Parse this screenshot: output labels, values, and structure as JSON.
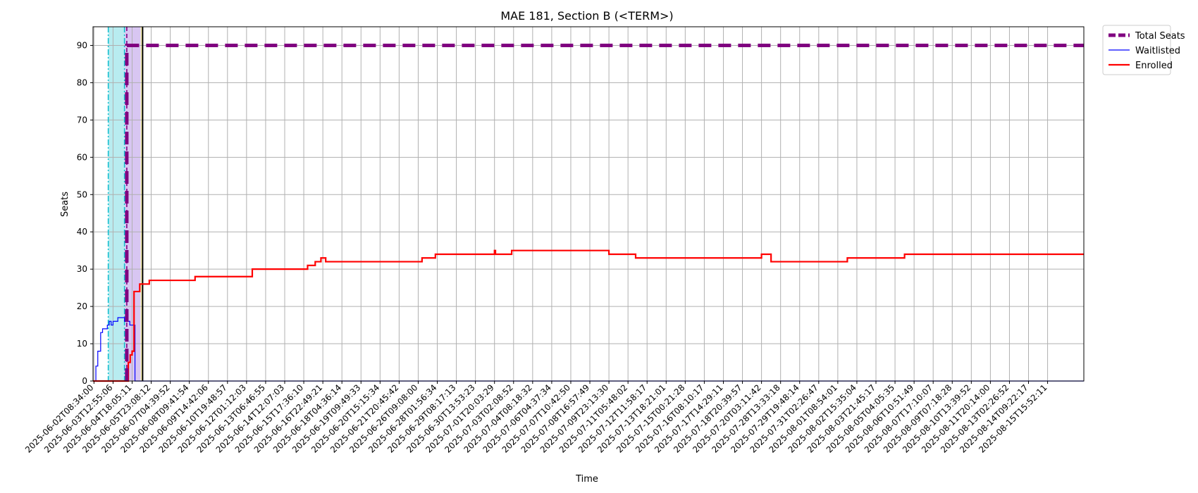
{
  "chart_data": {
    "type": "line",
    "title": "MAE 181, Section B (<TERM>)",
    "xlabel": "Time",
    "ylabel": "Seats",
    "ylim": [
      0,
      95
    ],
    "yticks": [
      0,
      10,
      20,
      30,
      40,
      50,
      60,
      70,
      80,
      90
    ],
    "grid": true,
    "legend_position": "outside-top-right",
    "x_tick_labels": [
      "2025-06-02T08:34:00",
      "2025-06-03T12:55:06",
      "2025-06-04T18:05:11",
      "2025-06-05T23:08:12",
      "2025-06-07T04:39:52",
      "2025-06-08T09:41:54",
      "2025-06-09T14:42:06",
      "2025-06-10T19:48:57",
      "2025-06-12T01:12:03",
      "2025-06-13T06:46:55",
      "2025-06-14T12:07:03",
      "2025-06-15T17:36:10",
      "2025-06-16T22:49:21",
      "2025-06-18T04:36:14",
      "2025-06-19T09:49:33",
      "2025-06-20T15:15:34",
      "2025-06-21T20:45:42",
      "2025-06-26T09:08:00",
      "2025-06-28T01:56:34",
      "2025-06-29T08:17:13",
      "2025-06-30T13:53:23",
      "2025-07-01T20:03:29",
      "2025-07-03T02:08:52",
      "2025-07-04T08:18:32",
      "2025-07-06T04:37:34",
      "2025-07-07T10:42:50",
      "2025-07-08T16:57:49",
      "2025-07-09T23:13:30",
      "2025-07-11T05:48:02",
      "2025-07-12T11:58:17",
      "2025-07-13T18:21:01",
      "2025-07-15T00:21:28",
      "2025-07-16T08:10:17",
      "2025-07-17T14:29:11",
      "2025-07-18T20:39:57",
      "2025-07-20T03:11:42",
      "2025-07-28T13:33:18",
      "2025-07-29T19:48:14",
      "2025-07-31T02:26:47",
      "2025-08-01T08:54:01",
      "2025-08-02T15:35:04",
      "2025-08-03T21:45:17",
      "2025-08-05T04:05:35",
      "2025-08-06T10:51:49",
      "2025-08-07T17:10:07",
      "2025-08-09T07:18:28",
      "2025-08-10T13:39:52",
      "2025-08-11T20:14:00",
      "2025-08-13T02:26:52",
      "2025-08-14T09:22:17",
      "2025-08-15T15:52:11"
    ],
    "x_range_ticks": [
      -0.05,
      51.9
    ],
    "shaded_regions": [
      {
        "from": 0.75,
        "to": 1.6,
        "color": "#b8ecf0"
      },
      {
        "from": 1.6,
        "to": 2.45,
        "color": "#d8c6f2"
      },
      {
        "from": 2.45,
        "to": 2.55,
        "color": "#fdf5b5"
      }
    ],
    "vertical_lines": [
      {
        "x": 0.75,
        "color": "#17becf",
        "style": "dashdot"
      },
      {
        "x": 1.6,
        "color": "#17becf",
        "style": "dashdot"
      },
      {
        "x": 1.72,
        "color": "#800080",
        "style": "dashed"
      },
      {
        "x": 2.55,
        "color": "#000000",
        "style": "solid"
      }
    ],
    "series": [
      {
        "name": "Total Seats",
        "color": "#800080",
        "style": "dashed",
        "points": [
          [
            1.72,
            0
          ],
          [
            1.72,
            90
          ],
          [
            51.9,
            90
          ]
        ]
      },
      {
        "name": "Waitlisted",
        "color": "#0000ff",
        "style": "step",
        "points": [
          [
            -0.05,
            0
          ],
          [
            0.1,
            4
          ],
          [
            0.2,
            8
          ],
          [
            0.35,
            13
          ],
          [
            0.45,
            14
          ],
          [
            0.7,
            15
          ],
          [
            0.8,
            16
          ],
          [
            0.9,
            15
          ],
          [
            1.0,
            16
          ],
          [
            1.2,
            16
          ],
          [
            1.25,
            17
          ],
          [
            1.55,
            17
          ],
          [
            1.6,
            16
          ],
          [
            1.65,
            17
          ],
          [
            1.7,
            18
          ],
          [
            1.78,
            16
          ],
          [
            1.88,
            15
          ],
          [
            2.05,
            15
          ],
          [
            2.15,
            0
          ],
          [
            51.9,
            0
          ]
        ]
      },
      {
        "name": "Enrolled",
        "color": "#ff0000",
        "style": "step",
        "points": [
          [
            -0.05,
            0
          ],
          [
            1.75,
            0
          ],
          [
            1.8,
            5
          ],
          [
            1.9,
            7
          ],
          [
            2.0,
            8
          ],
          [
            2.1,
            24
          ],
          [
            2.4,
            26
          ],
          [
            2.9,
            27
          ],
          [
            5.3,
            28
          ],
          [
            8.3,
            30
          ],
          [
            11.2,
            31
          ],
          [
            11.6,
            32
          ],
          [
            11.9,
            33
          ],
          [
            12.15,
            32
          ],
          [
            17.2,
            33
          ],
          [
            17.9,
            34
          ],
          [
            21.0,
            35
          ],
          [
            21.05,
            34
          ],
          [
            21.9,
            35
          ],
          [
            27.0,
            34
          ],
          [
            28.4,
            33
          ],
          [
            35.0,
            34
          ],
          [
            35.5,
            32
          ],
          [
            39.5,
            33
          ],
          [
            42.5,
            34
          ],
          [
            51.9,
            34
          ]
        ]
      }
    ]
  }
}
